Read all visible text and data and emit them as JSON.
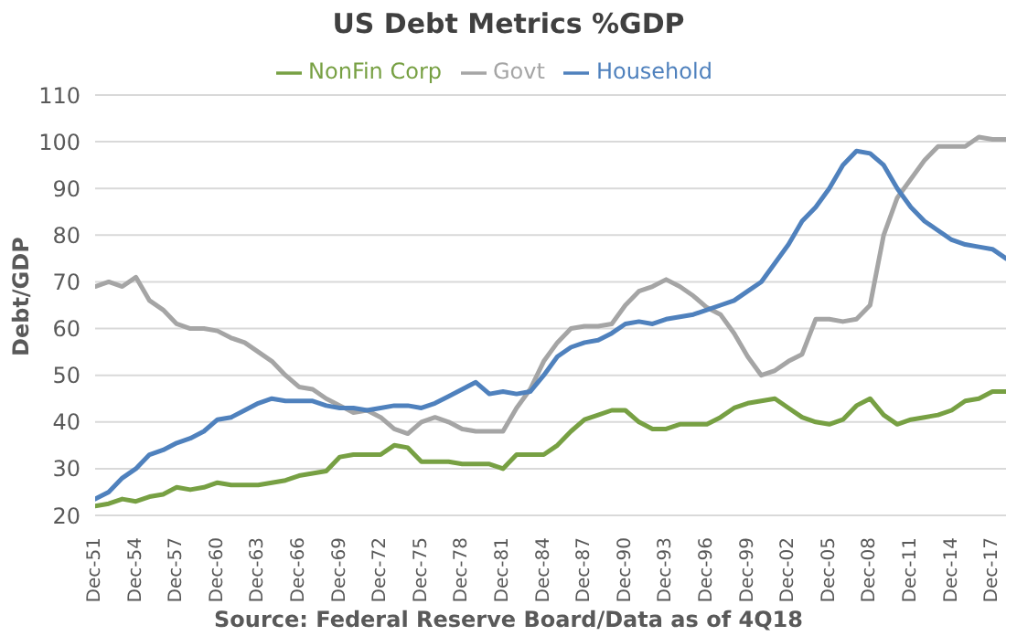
{
  "chart_data": {
    "type": "line",
    "title": "US Debt Metrics %GDP",
    "ylabel": "Debt/GDP",
    "categories": [
      "Dec-51",
      null,
      null,
      "Dec-54",
      null,
      null,
      "Dec-57",
      null,
      null,
      "Dec-60",
      null,
      null,
      "Dec-63",
      null,
      null,
      "Dec-66",
      null,
      null,
      "Dec-69",
      null,
      null,
      "Dec-72",
      null,
      null,
      "Dec-75",
      null,
      null,
      "Dec-78",
      null,
      null,
      "Dec-81",
      null,
      null,
      "Dec-84",
      null,
      null,
      "Dec-87",
      null,
      null,
      "Dec-90",
      null,
      null,
      "Dec-93",
      null,
      null,
      "Dec-96",
      null,
      null,
      "Dec-99",
      null,
      null,
      "Dec-02",
      null,
      null,
      "Dec-05",
      null,
      null,
      "Dec-08",
      null,
      null,
      "Dec-11",
      null,
      null,
      "Dec-14",
      null,
      null,
      "Dec-17",
      null
    ],
    "series": [
      {
        "name": "NonFin Corp",
        "color": "#77a043",
        "values": [
          22,
          22.5,
          23.5,
          23,
          24,
          24.5,
          26,
          25.5,
          26,
          27,
          26.5,
          26.5,
          26.5,
          27,
          27.5,
          28.5,
          29,
          29.5,
          32.5,
          33,
          33,
          33,
          35,
          34.5,
          31.5,
          31.5,
          31.5,
          31,
          31,
          31,
          30,
          33,
          33,
          33,
          35,
          38,
          40.5,
          41.5,
          42.5,
          42.5,
          40,
          38.5,
          38.5,
          39.5,
          39.5,
          39.5,
          41,
          43,
          44,
          44.5,
          45,
          43,
          41,
          40,
          39.5,
          40.5,
          43.5,
          45,
          41.5,
          39.5,
          40.5,
          41,
          41.5,
          42.5,
          44.5,
          45,
          46.5,
          46.5
        ]
      },
      {
        "name": "Govt",
        "color": "#a5a5a5",
        "values": [
          69,
          70,
          69,
          71,
          66,
          64,
          61,
          60,
          60,
          59.5,
          58,
          57,
          55,
          53,
          50,
          47.5,
          47,
          45,
          43.5,
          42,
          42.5,
          41,
          38.5,
          37.5,
          40,
          41,
          40,
          38.5,
          38,
          38,
          38,
          43,
          47,
          53,
          57,
          60,
          60.5,
          60.5,
          61,
          65,
          68,
          69,
          70.5,
          69,
          67,
          64.5,
          63,
          59,
          54,
          50,
          51,
          53,
          54.5,
          62,
          62,
          61.5,
          62,
          65,
          80,
          88,
          92,
          96,
          99,
          99,
          99,
          101,
          100.5,
          100.5
        ]
      },
      {
        "name": "Household",
        "color": "#4f81bd",
        "values": [
          23.5,
          25,
          28,
          30,
          33,
          34,
          35.5,
          36.5,
          38,
          40.5,
          41,
          42.5,
          44,
          45,
          44.5,
          44.5,
          44.5,
          43.5,
          43,
          43,
          42.5,
          43,
          43.5,
          43.5,
          43,
          44,
          45.5,
          47,
          48.5,
          46,
          46.5,
          46,
          46.5,
          50,
          54,
          56,
          57,
          57.5,
          59,
          61,
          61.5,
          61,
          62,
          62.5,
          63,
          64,
          65,
          66,
          68,
          70,
          74,
          78,
          83,
          86,
          90,
          95,
          98,
          97.5,
          95,
          90,
          86,
          83,
          81,
          79,
          78,
          77.5,
          77,
          75
        ]
      }
    ],
    "ylim": [
      20,
      110
    ],
    "yticks": [
      20,
      30,
      40,
      50,
      60,
      70,
      80,
      90,
      100,
      110
    ],
    "grid": "y",
    "legend": "top",
    "marker": "none",
    "line_style": "solid",
    "annotations": [
      "Source: Federal Reserve Board/Data as of 4Q18"
    ]
  }
}
